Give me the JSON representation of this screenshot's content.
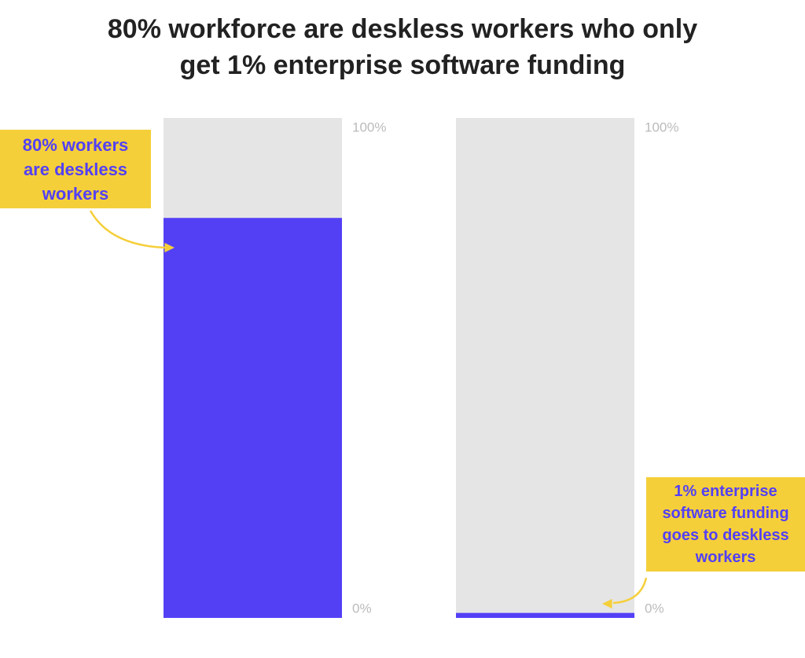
{
  "chart_data": {
    "type": "bar",
    "title": "80% workforce are deskless workers who only get 1% enterprise software funding",
    "categories": [
      null,
      null
    ],
    "series": [
      {
        "color": "#5340f5",
        "values": [
          80,
          1
        ]
      }
    ],
    "background_color": "#e5e5e5",
    "ylim": [
      0,
      100
    ],
    "yticks": [
      {
        "value": 0,
        "label": "0%"
      },
      {
        "value": 100,
        "label": "100%"
      }
    ],
    "grid": false,
    "annotations": [
      {
        "text": "80% workers are deskless workers",
        "color": "#f5cf3a"
      },
      {
        "text": "1% enterprise software funding goes to deskless workers",
        "color": "#f5cf3a"
      }
    ]
  }
}
